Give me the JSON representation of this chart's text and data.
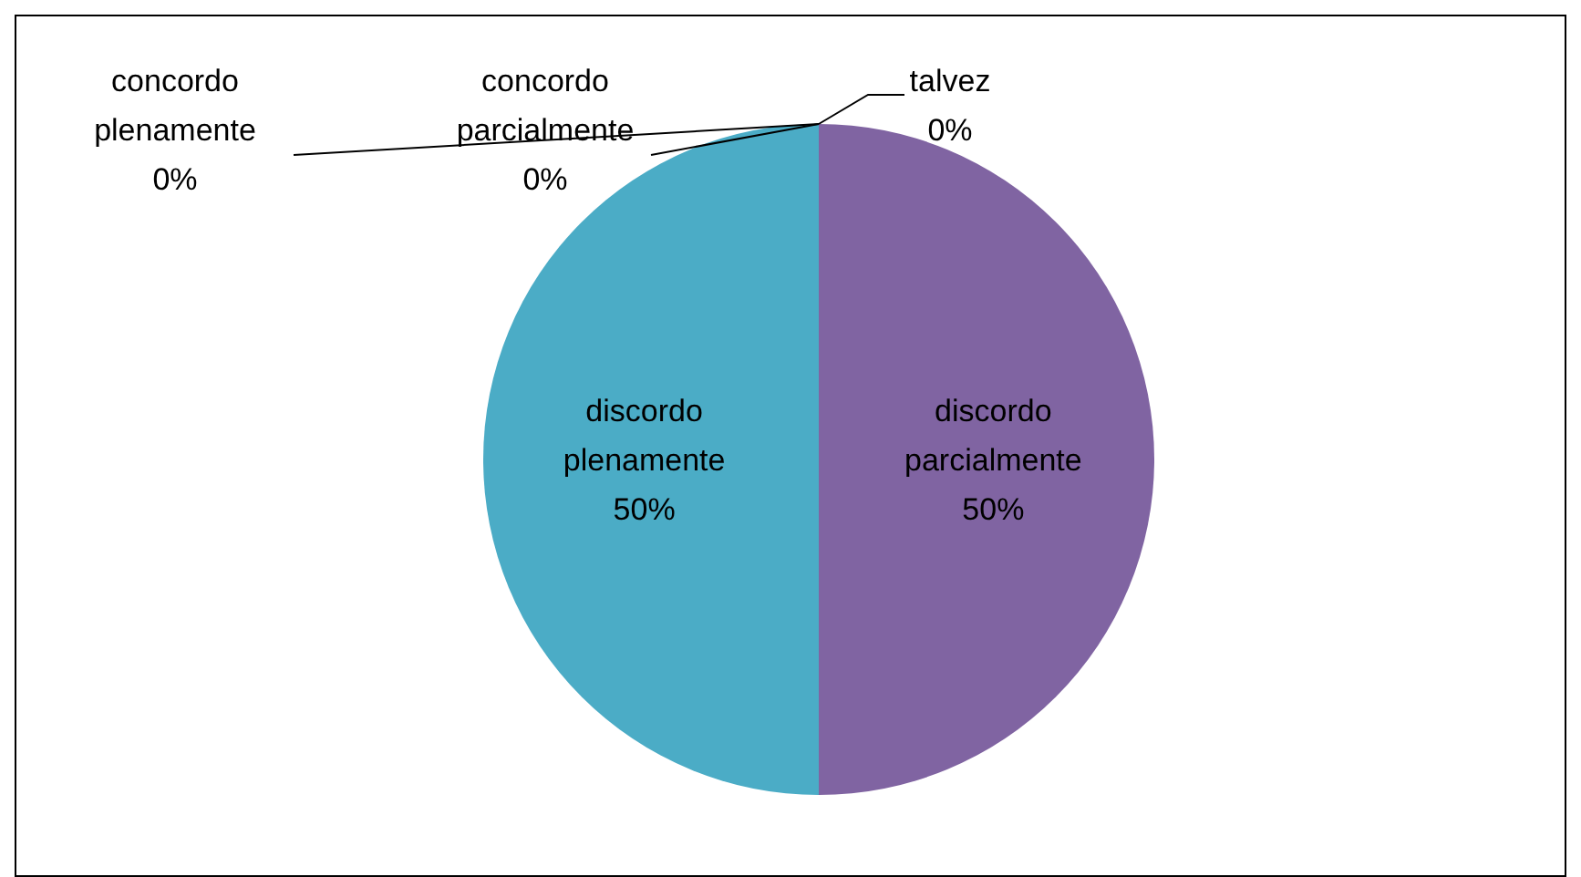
{
  "chart_data": {
    "type": "pie",
    "categories": [
      "concordo plenamente",
      "concordo parcialmente",
      "talvez",
      "discordo parcialmente",
      "discordo plenamente"
    ],
    "values": [
      0,
      0,
      0,
      50,
      50
    ],
    "colors": [
      "#4f81bd",
      "#c0504d",
      "#9bbb59",
      "#8064a2",
      "#4bacc6"
    ],
    "value_labels": [
      "0%",
      "0%",
      "0%",
      "50%",
      "50%"
    ]
  }
}
